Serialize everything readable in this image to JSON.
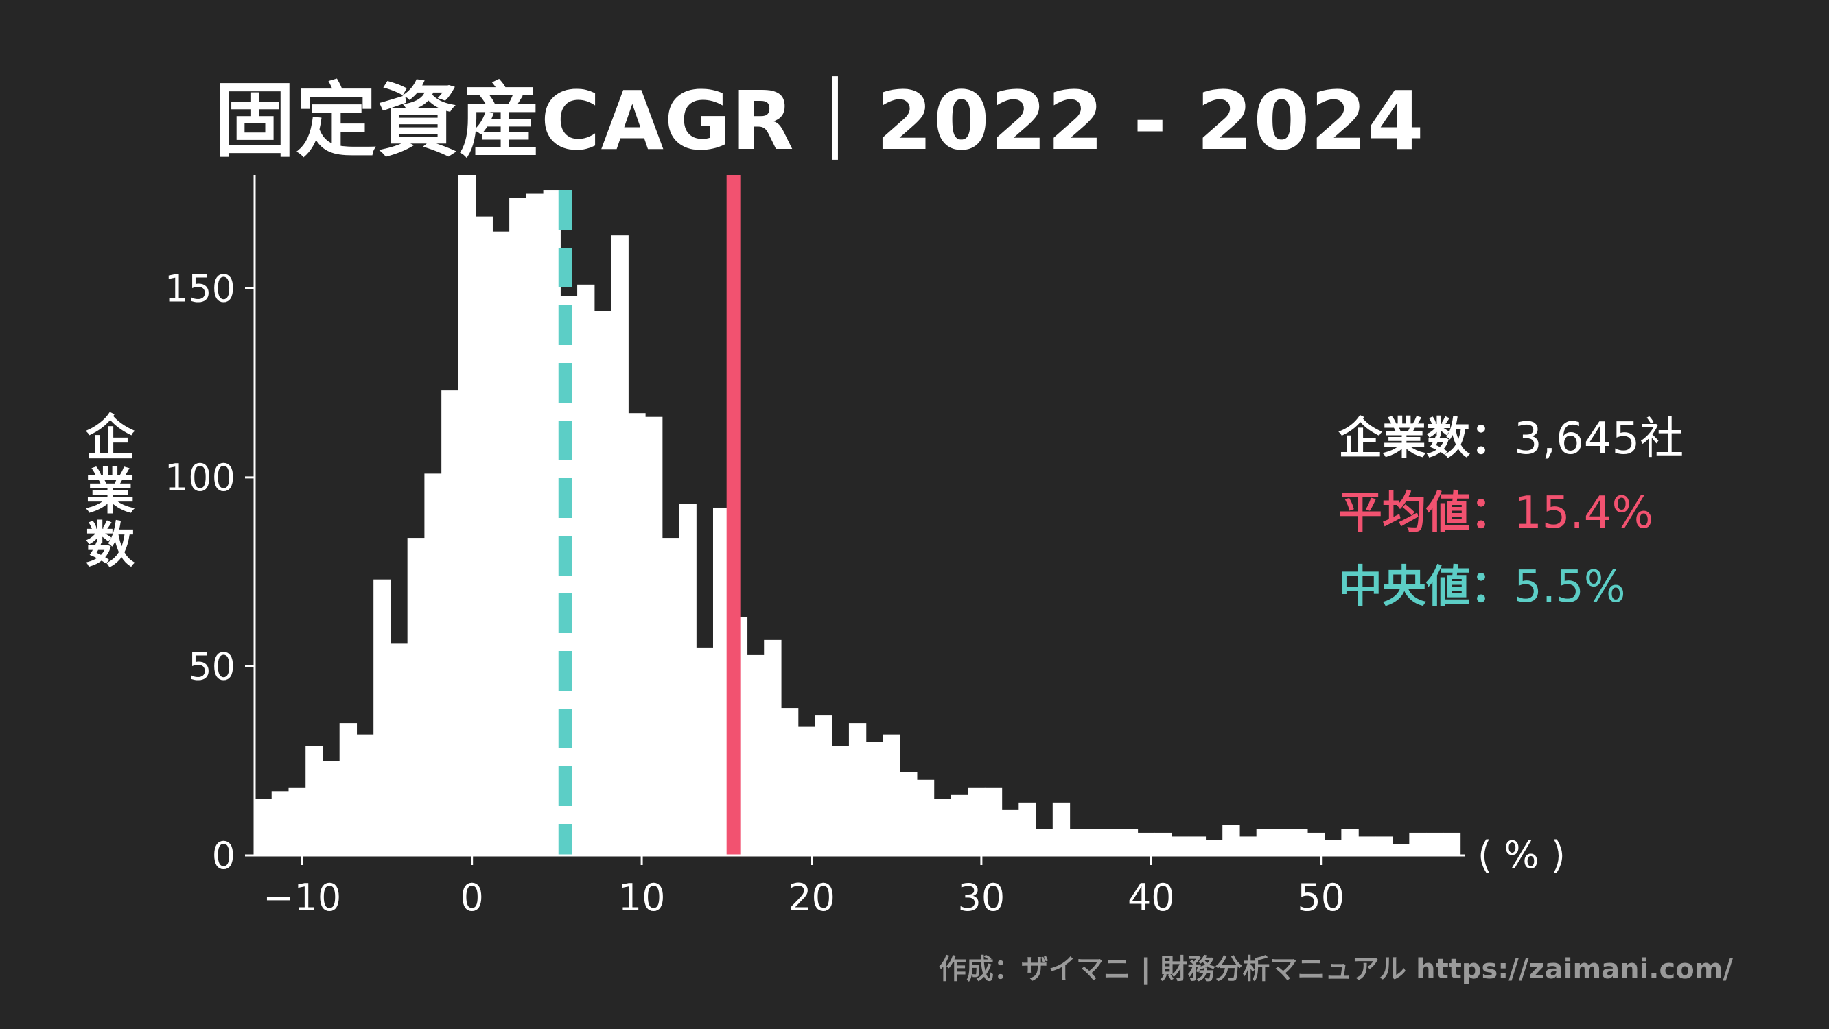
{
  "chart_data": {
    "type": "bar",
    "title": "固定資産CAGR｜2022 - 2024",
    "ylabel": "企業数",
    "xunit": "( % )",
    "xlim": [
      -12.8,
      58.5
    ],
    "ylim": [
      0,
      180
    ],
    "xticks": [
      -10,
      0,
      10,
      20,
      30,
      40,
      50
    ],
    "yticks": [
      0,
      50,
      100,
      150
    ],
    "xtick_labels": [
      "−10",
      "0",
      "10",
      "20",
      "30",
      "40",
      "50"
    ],
    "ytick_labels": [
      "0",
      "50",
      "100",
      "150"
    ],
    "bin_start": -12.8,
    "bin_width": 1.0,
    "values": [
      15,
      17,
      18,
      29,
      25,
      35,
      32,
      73,
      56,
      84,
      101,
      123,
      180,
      169,
      165,
      174,
      175,
      176,
      148,
      151,
      144,
      164,
      117,
      116,
      84,
      93,
      55,
      92,
      63,
      53,
      57,
      39,
      34,
      37,
      29,
      35,
      30,
      32,
      22,
      20,
      15,
      16,
      18,
      18,
      12,
      14,
      7,
      14,
      7,
      7,
      7,
      7,
      6,
      6,
      5,
      5,
      4,
      8,
      5,
      7,
      7,
      7,
      6,
      4,
      7,
      5,
      5,
      3,
      6,
      6,
      6
    ],
    "mean": 15.4,
    "median": 5.5,
    "colors": {
      "background": "#262626",
      "bars": "#ffffff",
      "mean": "#f25270",
      "median": "#5ccec6",
      "credit": "#9a9a9a"
    }
  },
  "stats": {
    "count_label": "企業数：",
    "count_value": "3,645社",
    "mean_label": "平均値：",
    "mean_value": "15.4%",
    "median_label": "中央値：",
    "median_value": "5.5%"
  },
  "credit": "作成：ザイマニ | 財務分析マニュアル https://zaimani.com/"
}
